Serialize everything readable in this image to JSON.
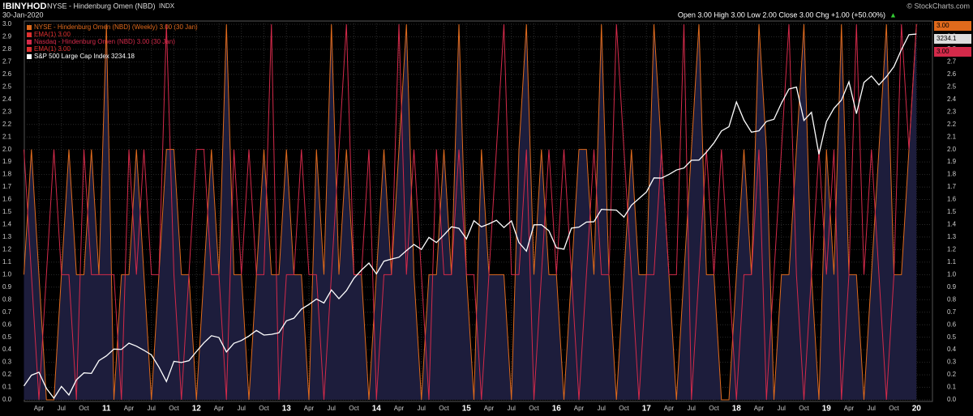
{
  "header": {
    "symbol": "!BINYHOD",
    "name": "NYSE - Hindenburg Omen (NBD)",
    "exchange": "INDX",
    "date": "30-Jan-2020",
    "quote": "Open 3.00 High 3.00 Low 2.00 Close 3.00 Chg +1.00 (+50.00%)",
    "quote_arrow": "▲",
    "credit": "© StockCharts.com"
  },
  "chart_data": {
    "type": "line",
    "grid": true,
    "fill_color": "#1d1d3c",
    "ylim": [
      0,
      3
    ],
    "yticks": [
      {
        "value": 0,
        "label": "0.0"
      },
      {
        "value": 0.1,
        "label": "0.1"
      },
      {
        "value": 0.2,
        "label": "0.2"
      },
      {
        "value": 0.3,
        "label": "0.3"
      },
      {
        "value": 0.4,
        "label": "0.4"
      },
      {
        "value": 0.5,
        "label": "0.5"
      },
      {
        "value": 0.6,
        "label": "0.6"
      },
      {
        "value": 0.7,
        "label": "0.7"
      },
      {
        "value": 0.8,
        "label": "0.8"
      },
      {
        "value": 0.9,
        "label": "0.9"
      },
      {
        "value": 1,
        "label": "1.0"
      },
      {
        "value": 1.1,
        "label": "1.1"
      },
      {
        "value": 1.2,
        "label": "1.2"
      },
      {
        "value": 1.3,
        "label": "1.3"
      },
      {
        "value": 1.4,
        "label": "1.4"
      },
      {
        "value": 1.5,
        "label": "1.5"
      },
      {
        "value": 1.6,
        "label": "1.6"
      },
      {
        "value": 1.7,
        "label": "1.7"
      },
      {
        "value": 1.8,
        "label": "1.8"
      },
      {
        "value": 1.9,
        "label": "1.9"
      },
      {
        "value": 2,
        "label": "2.0"
      },
      {
        "value": 2.1,
        "label": "2.1"
      },
      {
        "value": 2.2,
        "label": "2.2"
      },
      {
        "value": 2.3,
        "label": "2.3"
      },
      {
        "value": 2.4,
        "label": "2.4"
      },
      {
        "value": 2.5,
        "label": "2.5"
      },
      {
        "value": 2.6,
        "label": "2.6"
      },
      {
        "value": 2.7,
        "label": "2.7"
      },
      {
        "value": 2.8,
        "label": "2.8"
      },
      {
        "value": 2.9,
        "label": "2.9"
      },
      {
        "value": 3,
        "label": "3.0"
      }
    ],
    "y2lim": [
      1020,
      3293
    ],
    "xtick_labels": [
      "Apr",
      "Jul",
      "Oct",
      "11",
      "Apr",
      "Jul",
      "Oct",
      "12",
      "Apr",
      "Jul",
      "Oct",
      "13",
      "Apr",
      "Jul",
      "Oct",
      "14",
      "Apr",
      "Jul",
      "Oct",
      "15",
      "Apr",
      "Jul",
      "Oct",
      "16",
      "Apr",
      "Jul",
      "Oct",
      "17",
      "Apr",
      "Jul",
      "Oct",
      "18",
      "Apr",
      "Jul",
      "Oct",
      "19",
      "Apr",
      "Jul",
      "Oct",
      "20"
    ],
    "ema_labels": [
      "EMA(1) 3.00",
      "EMA(1) 3.00"
    ],
    "ema_color": "#e03030",
    "last_labels": [
      "3.00",
      "3234.1",
      "3.00"
    ],
    "last_label_colors": [
      "#e06a1c",
      "#000000",
      "#d42a4a"
    ],
    "series": [
      {
        "name": "NYSE - Hindenburg Omen (NBD) (Weekly) 3.00 (30 Jan)",
        "color": "#e06a1c",
        "fill": true,
        "values": [
          1,
          2,
          1,
          0,
          0,
          1,
          2,
          1,
          1,
          2,
          1,
          3,
          0,
          1,
          1,
          2,
          1,
          0,
          1,
          2,
          2,
          1,
          1,
          0,
          1,
          2,
          1,
          3,
          1,
          1,
          0,
          1,
          2,
          1,
          1,
          2,
          1,
          1,
          0,
          2,
          1,
          3,
          1,
          2,
          1,
          1,
          0,
          1,
          2,
          1,
          2,
          3,
          1,
          0,
          1,
          1,
          2,
          1,
          3,
          1,
          0,
          2,
          1,
          1,
          1,
          0,
          2,
          3,
          1,
          2,
          1,
          1,
          0,
          1,
          2,
          2,
          1,
          3,
          1,
          0,
          1,
          2,
          1,
          1,
          3,
          2,
          1,
          0,
          1,
          2,
          3,
          1,
          1,
          0,
          0,
          1,
          2,
          1,
          3,
          2,
          0,
          1,
          1,
          2,
          3,
          1,
          0,
          2,
          1,
          3,
          1,
          1,
          0,
          1,
          2,
          3,
          1,
          1,
          2,
          3
        ]
      },
      {
        "name": "Nasdaq - Hindenburg Omen (NBD) 3.00 (30 Jan)",
        "color": "#d42a4a",
        "values": [
          2,
          1,
          0,
          1,
          2,
          1,
          1,
          0,
          2,
          1,
          1,
          1,
          1,
          0,
          2,
          1,
          2,
          1,
          1,
          3,
          1,
          0,
          1,
          2,
          2,
          1,
          1,
          0,
          2,
          1,
          2,
          1,
          1,
          3,
          0,
          1,
          1,
          2,
          1,
          1,
          0,
          1,
          2,
          3,
          1,
          1,
          2,
          0,
          1,
          1,
          3,
          1,
          2,
          1,
          0,
          2,
          1,
          1,
          2,
          1,
          1,
          0,
          1,
          2,
          3,
          1,
          1,
          2,
          0,
          1,
          2,
          1,
          2,
          1,
          0,
          1,
          2,
          1,
          1,
          3,
          2,
          1,
          0,
          1,
          1,
          2,
          1,
          1,
          3,
          0,
          1,
          2,
          1,
          2,
          1,
          0,
          1,
          1,
          2,
          0,
          1,
          2,
          3,
          1,
          0,
          1,
          2,
          1,
          2,
          0,
          1,
          3,
          1,
          2,
          1,
          0,
          1,
          3,
          2,
          3
        ]
      },
      {
        "name": "S&P 500 Large Cap Index 3234.18",
        "color": "#ffffff",
        "axis": "y2",
        "values": [
          1104,
          1169,
          1187,
          1089,
          1030,
          1101,
          1049,
          1141,
          1183,
          1180,
          1257,
          1286,
          1327,
          1325,
          1363,
          1345,
          1320,
          1292,
          1218,
          1131,
          1253,
          1246,
          1257,
          1312,
          1365,
          1408,
          1397,
          1310,
          1362,
          1379,
          1406,
          1440,
          1412,
          1416,
          1426,
          1498,
          1514,
          1569,
          1597,
          1630,
          1606,
          1685,
          1632,
          1681,
          1756,
          1805,
          1848,
          1782,
          1859,
          1872,
          1883,
          1923,
          1960,
          1930,
          2003,
          1972,
          2018,
          2067,
          2058,
          1994,
          2104,
          2067,
          2085,
          2107,
          2063,
          2103,
          1972,
          1920,
          2079,
          2080,
          2043,
          1940,
          1932,
          2059,
          2065,
          2096,
          2098,
          2173,
          2170,
          2168,
          2126,
          2198,
          2238,
          2278,
          2363,
          2362,
          2384,
          2411,
          2423,
          2470,
          2471,
          2519,
          2575,
          2647,
          2673,
          2823,
          2713,
          2640,
          2648,
          2705,
          2718,
          2816,
          2901,
          2913,
          2711,
          2760,
          2506,
          2704,
          2784,
          2834,
          2945,
          2752,
          2941,
          2980,
          2926,
          2976,
          3037,
          3140,
          3230,
          3234
        ]
      }
    ]
  }
}
